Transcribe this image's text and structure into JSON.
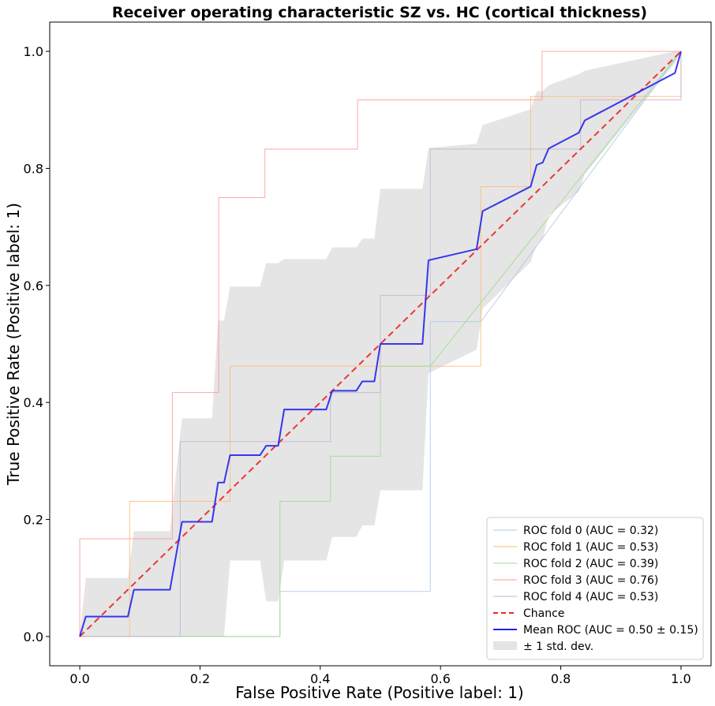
{
  "chart_data": {
    "type": "line",
    "title": "Receiver operating characteristic SZ vs. HC (cortical thickness)",
    "xlabel": "False Positive Rate (Positive label: 1)",
    "ylabel": "True Positive Rate (Positive label: 1)",
    "xlim": [
      -0.05,
      1.05
    ],
    "ylim": [
      -0.05,
      1.05
    ],
    "xticks": [
      "0.0",
      "0.2",
      "0.4",
      "0.6",
      "0.8",
      "1.0"
    ],
    "yticks": [
      "0.0",
      "0.2",
      "0.4",
      "0.6",
      "0.8",
      "1.0"
    ],
    "grid": false,
    "legend_position": "lower-right",
    "series": [
      {
        "name": "ROC fold 0 (AUC = 0.32)",
        "color": "#aec7e8",
        "x": [
          0,
          0.333,
          0.333,
          0.583,
          0.583,
          0.667,
          0.833,
          1.0
        ],
        "y": [
          0,
          0,
          0.077,
          0.077,
          0.538,
          0.538,
          0.769,
          1.0
        ]
      },
      {
        "name": "ROC fold 1 (AUC = 0.53)",
        "color": "#ffbb78",
        "x": [
          0,
          0.083,
          0.083,
          0.25,
          0.25,
          0.667,
          0.667,
          0.75,
          0.75,
          1.0,
          1.0
        ],
        "y": [
          0,
          0,
          0.231,
          0.231,
          0.462,
          0.462,
          0.769,
          0.769,
          0.923,
          0.923,
          1.0
        ]
      },
      {
        "name": "ROC fold 2 (AUC = 0.39)",
        "color": "#98df8a",
        "x": [
          0,
          0.333,
          0.333,
          0.417,
          0.417,
          0.5,
          0.5,
          0.583,
          1.0
        ],
        "y": [
          0,
          0,
          0.231,
          0.231,
          0.308,
          0.308,
          0.462,
          0.462,
          1.0
        ]
      },
      {
        "name": "ROC fold 3 (AUC = 0.76)",
        "color": "#ff9896",
        "x": [
          0,
          0,
          0.154,
          0.154,
          0.231,
          0.231,
          0.308,
          0.308,
          0.462,
          0.462,
          0.769,
          0.769,
          1.0,
          1.0
        ],
        "y": [
          0,
          0.167,
          0.167,
          0.417,
          0.417,
          0.75,
          0.75,
          0.833,
          0.833,
          0.917,
          0.917,
          1.0,
          1.0,
          1.0
        ]
      },
      {
        "name": "ROC fold 4 (AUC = 0.53)",
        "color": "#c5b0d5",
        "x": [
          0,
          0.167,
          0.167,
          0.417,
          0.417,
          0.5,
          0.5,
          0.583,
          0.583,
          0.833,
          0.833,
          1.0,
          1.0
        ],
        "y": [
          0,
          0,
          0.333,
          0.333,
          0.417,
          0.417,
          0.583,
          0.583,
          0.833,
          0.833,
          0.917,
          0.917,
          1.0
        ]
      },
      {
        "name": "Chance",
        "color": "#ee2222",
        "dashed": true,
        "x": [
          0,
          1
        ],
        "y": [
          0,
          1
        ]
      },
      {
        "name": "Mean ROC (AUC = 0.50 ± 0.15)",
        "color": "#2222ee",
        "x": [
          0,
          0.01,
          0.08,
          0.09,
          0.15,
          0.17,
          0.22,
          0.23,
          0.24,
          0.25,
          0.3,
          0.31,
          0.33,
          0.34,
          0.41,
          0.42,
          0.46,
          0.47,
          0.49,
          0.5,
          0.57,
          0.58,
          0.66,
          0.67,
          0.75,
          0.76,
          0.77,
          0.78,
          0.83,
          0.84,
          0.99,
          1.0
        ],
        "y": [
          0,
          0.034,
          0.034,
          0.08,
          0.08,
          0.196,
          0.196,
          0.263,
          0.263,
          0.31,
          0.31,
          0.326,
          0.326,
          0.388,
          0.388,
          0.42,
          0.42,
          0.436,
          0.436,
          0.5,
          0.5,
          0.643,
          0.662,
          0.727,
          0.769,
          0.806,
          0.81,
          0.834,
          0.861,
          0.882,
          0.963,
          1.0
        ]
      },
      {
        "name": "± 1 std. dev.",
        "color": "#bbbbbb",
        "fill": true,
        "x": [
          0,
          0.01,
          0.08,
          0.09,
          0.15,
          0.17,
          0.22,
          0.23,
          0.24,
          0.25,
          0.3,
          0.31,
          0.33,
          0.34,
          0.41,
          0.42,
          0.46,
          0.47,
          0.49,
          0.5,
          0.57,
          0.58,
          0.66,
          0.67,
          0.75,
          0.76,
          0.77,
          0.78,
          0.83,
          0.84,
          0.99,
          1.0
        ],
        "upper": [
          0,
          0.1,
          0.1,
          0.18,
          0.18,
          0.373,
          0.373,
          0.54,
          0.54,
          0.598,
          0.598,
          0.638,
          0.638,
          0.645,
          0.645,
          0.665,
          0.665,
          0.68,
          0.68,
          0.765,
          0.765,
          0.835,
          0.842,
          0.874,
          0.901,
          0.932,
          0.932,
          0.942,
          0.961,
          0.967,
          1.0,
          1.0
        ],
        "lower": [
          0,
          0,
          0,
          0,
          0,
          0,
          0,
          0,
          0,
          0.13,
          0.13,
          0.06,
          0.06,
          0.13,
          0.13,
          0.17,
          0.17,
          0.19,
          0.19,
          0.25,
          0.25,
          0.45,
          0.49,
          0.56,
          0.64,
          0.67,
          0.68,
          0.72,
          0.76,
          0.79,
          0.98,
          1.0
        ]
      }
    ]
  }
}
